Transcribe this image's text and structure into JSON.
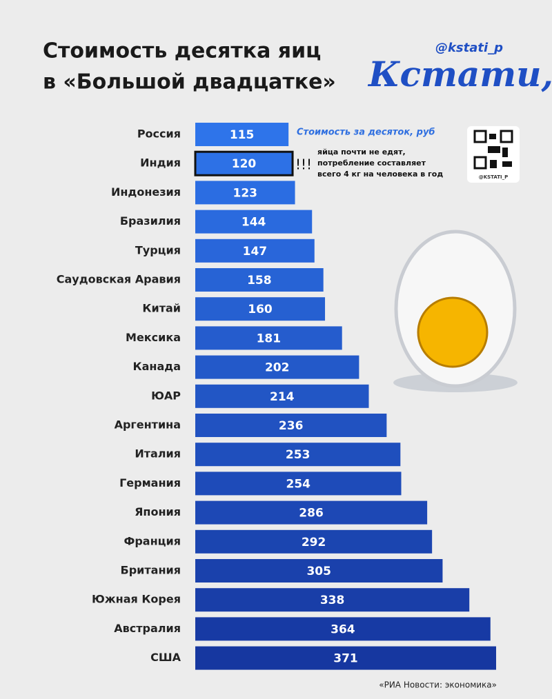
{
  "chart_data": {
    "type": "barh",
    "title": [
      "Стоимость десятка яиц",
      "в «Большой двадцатке»"
    ],
    "handle": "@kstati_p",
    "brand": "Кстати,",
    "qr_caption": "@KSTATI_P",
    "unit_label": "Стоимость за десяток, руб",
    "categories": [
      "Россия",
      "Индия",
      "Индонезия",
      "Бразилия",
      "Турция",
      "Саудовская Аравия",
      "Китай",
      "Мексика",
      "Канада",
      "ЮАР",
      "Аргентина",
      "Италия",
      "Германия",
      "Япония",
      "Франция",
      "Британия",
      "Южная Корея",
      "Австралия",
      "США"
    ],
    "values": [
      115,
      120,
      123,
      144,
      147,
      158,
      160,
      181,
      202,
      214,
      236,
      253,
      254,
      286,
      292,
      305,
      338,
      364,
      371
    ],
    "colors": [
      "#2e74ea",
      "#1637a0"
    ],
    "highlight": 1,
    "annotation": {
      "marker": "!!!",
      "lines": [
        "яйца почти не едят,",
        "потребление составляет",
        "всего 4 кг на человека в год"
      ]
    },
    "source": "«РИА Новости: экономика»"
  }
}
